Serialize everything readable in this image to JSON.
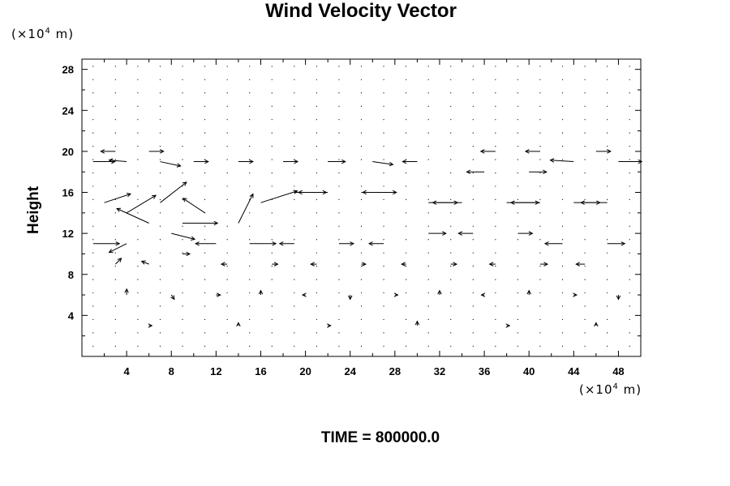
{
  "title": "Wind Velocity Vector",
  "y_unit": "(×10",
  "y_unit_exp": "4",
  "y_unit_tail": " m)",
  "x_unit": "(×10",
  "x_unit_exp": "4",
  "x_unit_tail": " m)",
  "y_label": "Height",
  "time_text": "TIME = 800000.0",
  "chart_data": {
    "type": "vector-field",
    "title": "Wind Velocity Vector",
    "ylabel": "Height",
    "x_units": "×10^4 m",
    "y_units": "×10^4 m",
    "xlim": [
      0,
      50
    ],
    "ylim": [
      0,
      29
    ],
    "x_ticks": [
      4,
      8,
      12,
      16,
      20,
      24,
      28,
      32,
      36,
      40,
      44,
      48
    ],
    "y_ticks": [
      4,
      8,
      12,
      16,
      20,
      24,
      28
    ],
    "grid": false,
    "time": 800000.0,
    "arrow_color": "#000000",
    "vectors": [
      {
        "x": 1,
        "y": 19,
        "u": 1.5,
        "v": 0
      },
      {
        "x": 4,
        "y": 19,
        "u": -1.2,
        "v": 0.1
      },
      {
        "x": 7,
        "y": 19,
        "u": 1.4,
        "v": -0.3
      },
      {
        "x": 10,
        "y": 19,
        "u": 1.0,
        "v": 0
      },
      {
        "x": 14,
        "y": 19,
        "u": 1.0,
        "v": 0
      },
      {
        "x": 18,
        "y": 19,
        "u": 1.0,
        "v": 0
      },
      {
        "x": 22,
        "y": 19,
        "u": 1.2,
        "v": 0
      },
      {
        "x": 26,
        "y": 19,
        "u": 1.4,
        "v": -0.2
      },
      {
        "x": 30,
        "y": 19,
        "u": -1.0,
        "v": 0
      },
      {
        "x": 36,
        "y": 18,
        "u": -1.2,
        "v": 0
      },
      {
        "x": 40,
        "y": 18,
        "u": 1.2,
        "v": 0
      },
      {
        "x": 44,
        "y": 19,
        "u": -1.6,
        "v": 0.1
      },
      {
        "x": 48,
        "y": 19,
        "u": 1.6,
        "v": 0
      },
      {
        "x": 3,
        "y": 20,
        "u": -1.0,
        "v": 0
      },
      {
        "x": 6,
        "y": 20,
        "u": 1.0,
        "v": 0
      },
      {
        "x": 37,
        "y": 20,
        "u": -1.0,
        "v": 0
      },
      {
        "x": 41,
        "y": 20,
        "u": -1.0,
        "v": 0
      },
      {
        "x": 46,
        "y": 20,
        "u": 1.0,
        "v": 0
      },
      {
        "x": 2,
        "y": 15,
        "u": 1.8,
        "v": 0.6
      },
      {
        "x": 4,
        "y": 14,
        "u": 2.0,
        "v": 1.2
      },
      {
        "x": 6,
        "y": 13,
        "u": -2.2,
        "v": 1.0
      },
      {
        "x": 7,
        "y": 15,
        "u": 1.8,
        "v": 1.4
      },
      {
        "x": 9,
        "y": 13,
        "u": 2.4,
        "v": 0
      },
      {
        "x": 11,
        "y": 14,
        "u": -1.5,
        "v": 1.0
      },
      {
        "x": 14,
        "y": 13,
        "u": 1.0,
        "v": 2.0
      },
      {
        "x": 16,
        "y": 15,
        "u": 2.5,
        "v": 0.8
      },
      {
        "x": 19,
        "y": 16,
        "u": 2.2,
        "v": 0
      },
      {
        "x": 22,
        "y": 16,
        "u": -2.0,
        "v": 0
      },
      {
        "x": 25,
        "y": 16,
        "u": 2.4,
        "v": 0
      },
      {
        "x": 28,
        "y": 16,
        "u": -2.2,
        "v": 0
      },
      {
        "x": 31,
        "y": 15,
        "u": 2.0,
        "v": 0
      },
      {
        "x": 34,
        "y": 15,
        "u": -2.0,
        "v": 0
      },
      {
        "x": 38,
        "y": 15,
        "u": 2.2,
        "v": 0
      },
      {
        "x": 41,
        "y": 15,
        "u": -2.0,
        "v": 0
      },
      {
        "x": 44,
        "y": 15,
        "u": 1.8,
        "v": 0
      },
      {
        "x": 47,
        "y": 15,
        "u": -1.8,
        "v": 0
      },
      {
        "x": 1,
        "y": 11,
        "u": 1.8,
        "v": 0
      },
      {
        "x": 4,
        "y": 11,
        "u": -1.2,
        "v": -0.6
      },
      {
        "x": 8,
        "y": 12,
        "u": 1.6,
        "v": -0.4
      },
      {
        "x": 12,
        "y": 11,
        "u": -1.4,
        "v": 0
      },
      {
        "x": 15,
        "y": 11,
        "u": 1.8,
        "v": 0
      },
      {
        "x": 19,
        "y": 11,
        "u": -1.0,
        "v": 0
      },
      {
        "x": 23,
        "y": 11,
        "u": 1.0,
        "v": 0
      },
      {
        "x": 27,
        "y": 11,
        "u": -1.0,
        "v": 0
      },
      {
        "x": 31,
        "y": 12,
        "u": 1.2,
        "v": 0
      },
      {
        "x": 35,
        "y": 12,
        "u": -1.0,
        "v": 0
      },
      {
        "x": 39,
        "y": 12,
        "u": 1.0,
        "v": 0
      },
      {
        "x": 43,
        "y": 11,
        "u": -1.2,
        "v": 0
      },
      {
        "x": 47,
        "y": 11,
        "u": 1.2,
        "v": 0
      },
      {
        "x": 3,
        "y": 9,
        "u": 0.4,
        "v": 0.4
      },
      {
        "x": 6,
        "y": 9,
        "u": -0.5,
        "v": 0.2
      },
      {
        "x": 9,
        "y": 10,
        "u": 0.5,
        "v": 0
      },
      {
        "x": 13,
        "y": 9,
        "u": -0.4,
        "v": 0
      },
      {
        "x": 17,
        "y": 9,
        "u": 0.4,
        "v": 0
      },
      {
        "x": 21,
        "y": 9,
        "u": -0.4,
        "v": 0
      },
      {
        "x": 25,
        "y": 9,
        "u": 0.3,
        "v": 0
      },
      {
        "x": 29,
        "y": 9,
        "u": -0.3,
        "v": 0
      },
      {
        "x": 33,
        "y": 9,
        "u": 0.4,
        "v": 0
      },
      {
        "x": 37,
        "y": 9,
        "u": -0.4,
        "v": 0
      },
      {
        "x": 41,
        "y": 9,
        "u": 0.5,
        "v": 0
      },
      {
        "x": 45,
        "y": 9,
        "u": -0.6,
        "v": 0
      },
      {
        "x": 4,
        "y": 6,
        "u": 0,
        "v": 0.4
      },
      {
        "x": 8,
        "y": 6,
        "u": 0.2,
        "v": -0.3
      },
      {
        "x": 12,
        "y": 6,
        "u": 0.3,
        "v": 0
      },
      {
        "x": 16,
        "y": 6,
        "u": 0,
        "v": 0.3
      },
      {
        "x": 20,
        "y": 6,
        "u": -0.2,
        "v": 0
      },
      {
        "x": 24,
        "y": 6,
        "u": 0,
        "v": -0.3
      },
      {
        "x": 28,
        "y": 6,
        "u": 0.2,
        "v": 0
      },
      {
        "x": 32,
        "y": 6,
        "u": 0,
        "v": 0.3
      },
      {
        "x": 36,
        "y": 6,
        "u": -0.2,
        "v": 0
      },
      {
        "x": 40,
        "y": 6,
        "u": 0,
        "v": 0.3
      },
      {
        "x": 44,
        "y": 6,
        "u": 0.2,
        "v": 0
      },
      {
        "x": 48,
        "y": 6,
        "u": 0,
        "v": -0.3
      },
      {
        "x": 6,
        "y": 3,
        "u": 0.2,
        "v": 0
      },
      {
        "x": 14,
        "y": 3,
        "u": 0,
        "v": 0.2
      },
      {
        "x": 22,
        "y": 3,
        "u": 0.2,
        "v": 0
      },
      {
        "x": 30,
        "y": 3,
        "u": 0,
        "v": 0.3
      },
      {
        "x": 38,
        "y": 3,
        "u": 0.2,
        "v": 0
      },
      {
        "x": 46,
        "y": 3,
        "u": 0,
        "v": 0.2
      }
    ]
  }
}
